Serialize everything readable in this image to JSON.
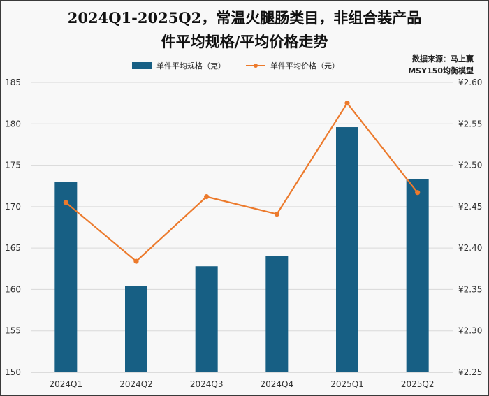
{
  "colors": {
    "bar": "#175f84",
    "line": "#ec7a2c",
    "grid": "#d9d9d9",
    "text": "#333333"
  },
  "title_line1": "2024Q1-2025Q2，常温火腿肠类目，非组合装产品",
  "title_line2": "件平均规格/平均价格走势",
  "source_line1": "数据来源：马上赢",
  "source_line2": "MSY150均衡模型",
  "chart_data": {
    "type": "bar",
    "categories": [
      "2024Q1",
      "2024Q2",
      "2024Q3",
      "2024Q4",
      "2025Q1",
      "2025Q2"
    ],
    "series": [
      {
        "name": "单件平均规格（克）",
        "type": "bar",
        "axis": "left",
        "values": [
          173.0,
          160.4,
          162.8,
          164.0,
          179.6,
          173.3
        ]
      },
      {
        "name": "单件平均价格（元）",
        "type": "line",
        "axis": "right",
        "values": [
          2.455,
          2.384,
          2.462,
          2.441,
          2.575,
          2.467
        ]
      }
    ],
    "ylim_left": [
      150,
      185
    ],
    "ylim_right": [
      2.25,
      2.6
    ],
    "yticks_left": [
      "150",
      "155",
      "160",
      "165",
      "170",
      "175",
      "180",
      "185"
    ],
    "yticks_right": [
      "¥2.25",
      "¥2.30",
      "¥2.35",
      "¥2.40",
      "¥2.45",
      "¥2.50",
      "¥2.55",
      "¥2.60"
    ],
    "grid": true,
    "legend_position": "top"
  }
}
